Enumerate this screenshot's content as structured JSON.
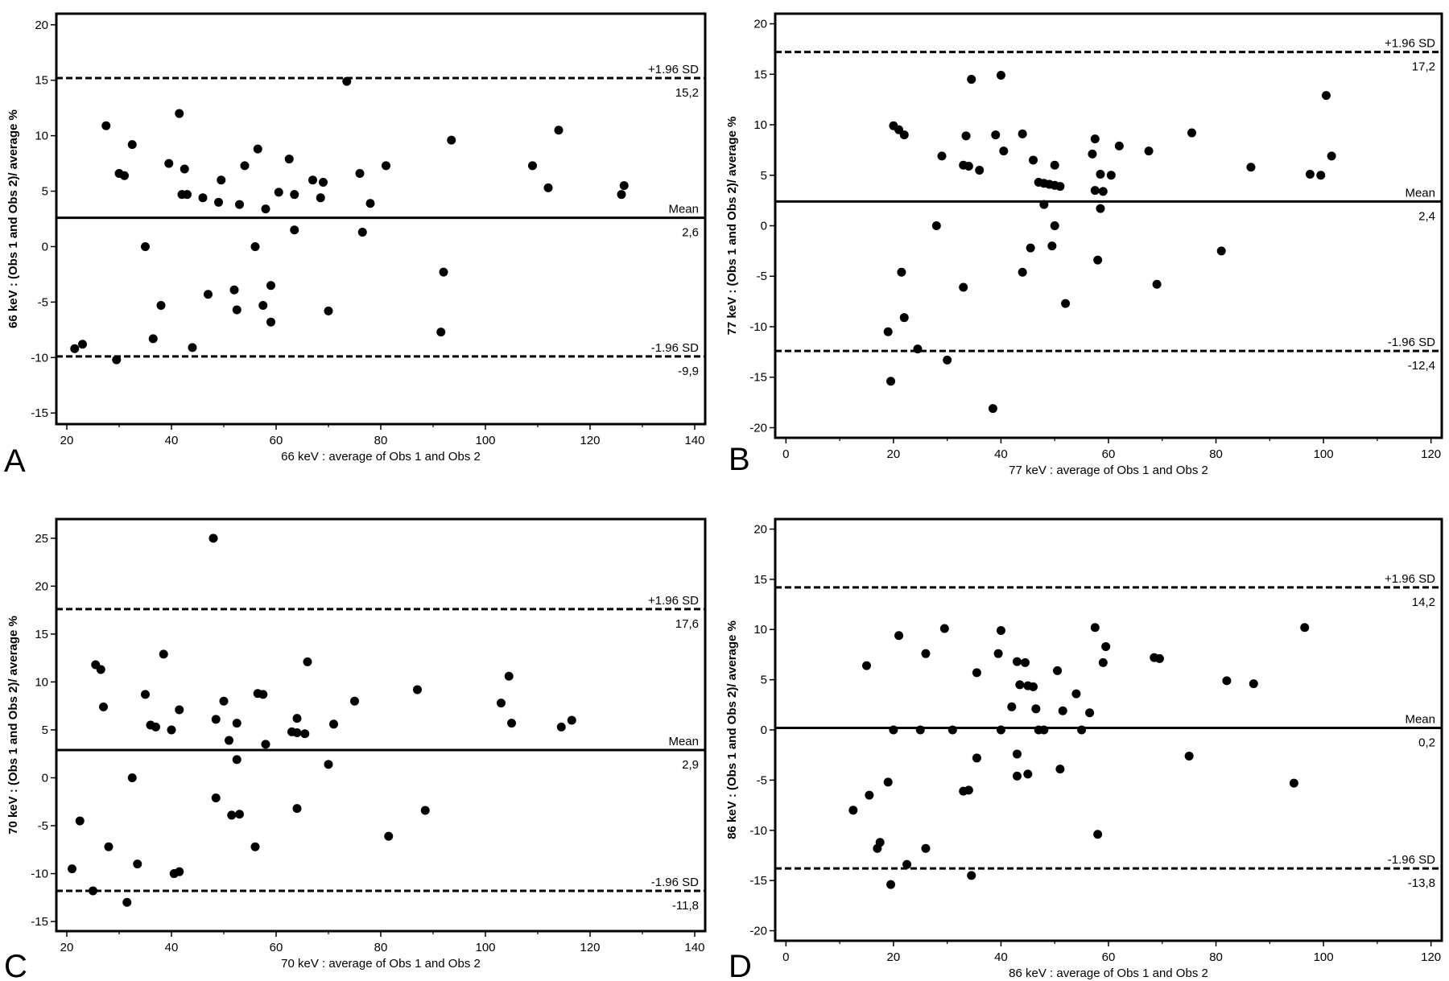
{
  "chart_data": [
    {
      "type": "scatter",
      "panel_label": "A",
      "xlabel": "66 keV : average of Obs 1 and Obs 2",
      "ylabel": "66 keV : (Obs 1 and Obs 2)/ average %",
      "xlim": [
        18,
        142
      ],
      "ylim": [
        -16,
        21
      ],
      "xticks": [
        "20",
        "40",
        "60",
        "80",
        "100",
        "120",
        "140"
      ],
      "yticks": [
        "-15",
        "-10",
        "-5",
        "0",
        "5",
        "10",
        "15",
        "20"
      ],
      "grid": false,
      "lines": [
        {
          "name": "+1.96 SD",
          "value": 15.2,
          "value_label": "15,2",
          "style": "dashed"
        },
        {
          "name": "Mean",
          "value": 2.6,
          "value_label": "2,6",
          "style": "solid"
        },
        {
          "name": "-1.96 SD",
          "value": -9.9,
          "value_label": "-9,9",
          "style": "dashed"
        }
      ],
      "points": [
        [
          21.5,
          -9.2
        ],
        [
          23,
          -8.8
        ],
        [
          27.5,
          10.9
        ],
        [
          29.5,
          -10.2
        ],
        [
          30,
          6.6
        ],
        [
          31,
          6.4
        ],
        [
          32.5,
          9.2
        ],
        [
          35,
          0
        ],
        [
          36.5,
          -8.3
        ],
        [
          38,
          -5.3
        ],
        [
          39.5,
          7.5
        ],
        [
          41.5,
          12
        ],
        [
          42,
          4.7
        ],
        [
          42.5,
          7
        ],
        [
          43,
          4.7
        ],
        [
          44,
          -9.1
        ],
        [
          46,
          4.4
        ],
        [
          47,
          -4.3
        ],
        [
          49,
          4
        ],
        [
          49.5,
          6
        ],
        [
          52,
          -3.9
        ],
        [
          52.5,
          -5.7
        ],
        [
          53,
          3.8
        ],
        [
          54,
          7.3
        ],
        [
          56,
          0
        ],
        [
          56.5,
          8.8
        ],
        [
          57.5,
          -5.3
        ],
        [
          58,
          3.4
        ],
        [
          59,
          -6.8
        ],
        [
          59,
          -3.5
        ],
        [
          60.5,
          4.9
        ],
        [
          62.5,
          7.9
        ],
        [
          63.5,
          4.7
        ],
        [
          63.5,
          1.5
        ],
        [
          67,
          6
        ],
        [
          68.5,
          4.4
        ],
        [
          69,
          5.8
        ],
        [
          70,
          -5.8
        ],
        [
          73.5,
          14.9
        ],
        [
          76,
          6.6
        ],
        [
          76.5,
          1.3
        ],
        [
          78,
          3.9
        ],
        [
          81,
          7.3
        ],
        [
          91.5,
          -7.7
        ],
        [
          92,
          -2.3
        ],
        [
          93.5,
          9.6
        ],
        [
          109,
          7.3
        ],
        [
          112,
          5.3
        ],
        [
          114,
          10.5
        ],
        [
          126,
          4.7
        ],
        [
          126.5,
          5.5
        ]
      ]
    },
    {
      "type": "scatter",
      "panel_label": "B",
      "xlabel": "77 keV : average of Obs 1 and Obs 2",
      "ylabel": "77 keV : (Obs 1 and Obs 2)/ average %",
      "xlim": [
        -2,
        122
      ],
      "ylim": [
        -21,
        21
      ],
      "xticks": [
        "0",
        "20",
        "40",
        "60",
        "80",
        "100",
        "120"
      ],
      "yticks": [
        "-20",
        "-15",
        "-10",
        "-5",
        "0",
        "5",
        "10",
        "15",
        "20"
      ],
      "grid": false,
      "lines": [
        {
          "name": "+1.96 SD",
          "value": 17.2,
          "value_label": "17,2",
          "style": "dashed"
        },
        {
          "name": "Mean",
          "value": 2.4,
          "value_label": "2,4",
          "style": "solid"
        },
        {
          "name": "-1.96 SD",
          "value": -12.4,
          "value_label": "-12,4",
          "style": "dashed"
        }
      ],
      "points": [
        [
          19,
          -10.5
        ],
        [
          19.5,
          -15.4
        ],
        [
          20,
          9.9
        ],
        [
          21,
          9.5
        ],
        [
          21.5,
          -4.6
        ],
        [
          22,
          9
        ],
        [
          22,
          -9.1
        ],
        [
          24.5,
          -12.2
        ],
        [
          28,
          0
        ],
        [
          29,
          6.9
        ],
        [
          30,
          -13.3
        ],
        [
          33,
          -6.1
        ],
        [
          33,
          6
        ],
        [
          33.5,
          8.9
        ],
        [
          34,
          5.9
        ],
        [
          34.5,
          14.5
        ],
        [
          36,
          5.5
        ],
        [
          38.5,
          -18.1
        ],
        [
          39,
          9
        ],
        [
          40,
          14.9
        ],
        [
          40.5,
          7.4
        ],
        [
          44,
          -4.6
        ],
        [
          44,
          9.1
        ],
        [
          45.5,
          -2.2
        ],
        [
          46,
          6.5
        ],
        [
          47,
          4.3
        ],
        [
          48,
          4.2
        ],
        [
          48,
          2.1
        ],
        [
          49,
          4.1
        ],
        [
          49.5,
          -2
        ],
        [
          50,
          6
        ],
        [
          50,
          0
        ],
        [
          50,
          4
        ],
        [
          51,
          3.9
        ],
        [
          52,
          -7.7
        ],
        [
          57,
          7.1
        ],
        [
          57.5,
          3.5
        ],
        [
          57.5,
          8.6
        ],
        [
          58,
          -3.4
        ],
        [
          58.5,
          1.7
        ],
        [
          58.5,
          5.1
        ],
        [
          59,
          3.4
        ],
        [
          60.5,
          5
        ],
        [
          62,
          7.9
        ],
        [
          67.5,
          7.4
        ],
        [
          69,
          -5.8
        ],
        [
          75.5,
          9.2
        ],
        [
          81,
          -2.5
        ],
        [
          86.5,
          5.8
        ],
        [
          97.5,
          5.1
        ],
        [
          99.5,
          5
        ],
        [
          100.5,
          12.9
        ],
        [
          101.5,
          6.9
        ]
      ]
    },
    {
      "type": "scatter",
      "panel_label": "C",
      "xlabel": "70 keV : average of Obs 1 and Obs 2",
      "ylabel": "70 keV : (Obs 1 and Obs 2)/ average %",
      "xlim": [
        18,
        142
      ],
      "ylim": [
        -16,
        27
      ],
      "xticks": [
        "20",
        "40",
        "60",
        "80",
        "100",
        "120",
        "140"
      ],
      "yticks": [
        "-15",
        "-10",
        "-5",
        "0",
        "5",
        "10",
        "15",
        "20",
        "25"
      ],
      "grid": false,
      "lines": [
        {
          "name": "+1.96 SD",
          "value": 17.6,
          "value_label": "17,6",
          "style": "dashed"
        },
        {
          "name": "Mean",
          "value": 2.9,
          "value_label": "2,9",
          "style": "solid"
        },
        {
          "name": "-1.96 SD",
          "value": -11.8,
          "value_label": "-11,8",
          "style": "dashed"
        }
      ],
      "points": [
        [
          21,
          -9.5
        ],
        [
          22.5,
          -4.5
        ],
        [
          25,
          -11.8
        ],
        [
          25.5,
          11.8
        ],
        [
          26.5,
          11.3
        ],
        [
          27,
          7.4
        ],
        [
          28,
          -7.2
        ],
        [
          31.5,
          -13
        ],
        [
          32.5,
          0
        ],
        [
          33.5,
          -9
        ],
        [
          35,
          8.7
        ],
        [
          36,
          5.5
        ],
        [
          37,
          5.3
        ],
        [
          38.5,
          12.9
        ],
        [
          40,
          5
        ],
        [
          40.5,
          -10
        ],
        [
          41.5,
          -9.8
        ],
        [
          41.5,
          7.1
        ],
        [
          48,
          25
        ],
        [
          48.5,
          6.1
        ],
        [
          48.5,
          -2.1
        ],
        [
          50,
          8
        ],
        [
          51,
          3.9
        ],
        [
          51.5,
          -3.9
        ],
        [
          52.5,
          5.7
        ],
        [
          52.5,
          1.9
        ],
        [
          53,
          -3.8
        ],
        [
          56,
          -7.2
        ],
        [
          56.5,
          8.8
        ],
        [
          57.5,
          8.7
        ],
        [
          58,
          3.5
        ],
        [
          63,
          4.8
        ],
        [
          64,
          4.7
        ],
        [
          64,
          6.2
        ],
        [
          64,
          -3.2
        ],
        [
          65.5,
          4.6
        ],
        [
          66,
          12.1
        ],
        [
          70,
          1.4
        ],
        [
          71,
          5.6
        ],
        [
          75,
          8
        ],
        [
          81.5,
          -6.1
        ],
        [
          87,
          9.2
        ],
        [
          88.5,
          -3.4
        ],
        [
          103,
          7.8
        ],
        [
          104.5,
          10.6
        ],
        [
          105,
          5.7
        ],
        [
          114.5,
          5.3
        ],
        [
          116.5,
          6
        ]
      ]
    },
    {
      "type": "scatter",
      "panel_label": "D",
      "xlabel": "86 keV : average of Obs 1 and Obs 2",
      "ylabel": "86 keV : (Obs 1 and Obs 2)/ average %",
      "xlim": [
        -2,
        122
      ],
      "ylim": [
        -21,
        21
      ],
      "xticks": [
        "0",
        "20",
        "40",
        "60",
        "80",
        "100",
        "120"
      ],
      "yticks": [
        "-20",
        "-15",
        "-10",
        "-5",
        "0",
        "5",
        "10",
        "15",
        "20"
      ],
      "grid": false,
      "lines": [
        {
          "name": "+1.96 SD",
          "value": 14.2,
          "value_label": "14,2",
          "style": "dashed"
        },
        {
          "name": "Mean",
          "value": 0.2,
          "value_label": "0,2",
          "style": "solid"
        },
        {
          "name": "-1.96 SD",
          "value": -13.8,
          "value_label": "-13,8",
          "style": "dashed"
        }
      ],
      "points": [
        [
          12.5,
          -8
        ],
        [
          15,
          6.4
        ],
        [
          15.5,
          -6.5
        ],
        [
          17,
          -11.8
        ],
        [
          17.5,
          -11.2
        ],
        [
          19,
          -5.2
        ],
        [
          19.5,
          -15.4
        ],
        [
          20,
          0
        ],
        [
          21,
          9.4
        ],
        [
          22.5,
          -13.4
        ],
        [
          25,
          0
        ],
        [
          26,
          -11.8
        ],
        [
          26,
          7.6
        ],
        [
          29.5,
          10.1
        ],
        [
          31,
          0
        ],
        [
          33,
          -6.1
        ],
        [
          34,
          -6
        ],
        [
          34.5,
          -14.5
        ],
        [
          35.5,
          5.7
        ],
        [
          35.5,
          -2.8
        ],
        [
          39.5,
          7.6
        ],
        [
          40,
          9.9
        ],
        [
          40,
          0
        ],
        [
          42,
          2.3
        ],
        [
          43,
          -4.6
        ],
        [
          43,
          6.8
        ],
        [
          43,
          -2.4
        ],
        [
          43.5,
          4.5
        ],
        [
          44.5,
          6.7
        ],
        [
          45,
          4.4
        ],
        [
          45,
          -4.4
        ],
        [
          46,
          4.3
        ],
        [
          46.5,
          2.1
        ],
        [
          47,
          0
        ],
        [
          48,
          0
        ],
        [
          50.5,
          5.9
        ],
        [
          51,
          -3.9
        ],
        [
          51.5,
          1.9
        ],
        [
          54,
          3.6
        ],
        [
          55,
          0
        ],
        [
          56.5,
          1.7
        ],
        [
          57.5,
          10.2
        ],
        [
          58,
          -10.4
        ],
        [
          59,
          6.7
        ],
        [
          59.5,
          8.3
        ],
        [
          68.5,
          7.2
        ],
        [
          69.5,
          7.1
        ],
        [
          75,
          -2.6
        ],
        [
          82,
          4.9
        ],
        [
          87,
          4.6
        ],
        [
          94.5,
          -5.3
        ],
        [
          96.5,
          10.2
        ]
      ]
    }
  ]
}
